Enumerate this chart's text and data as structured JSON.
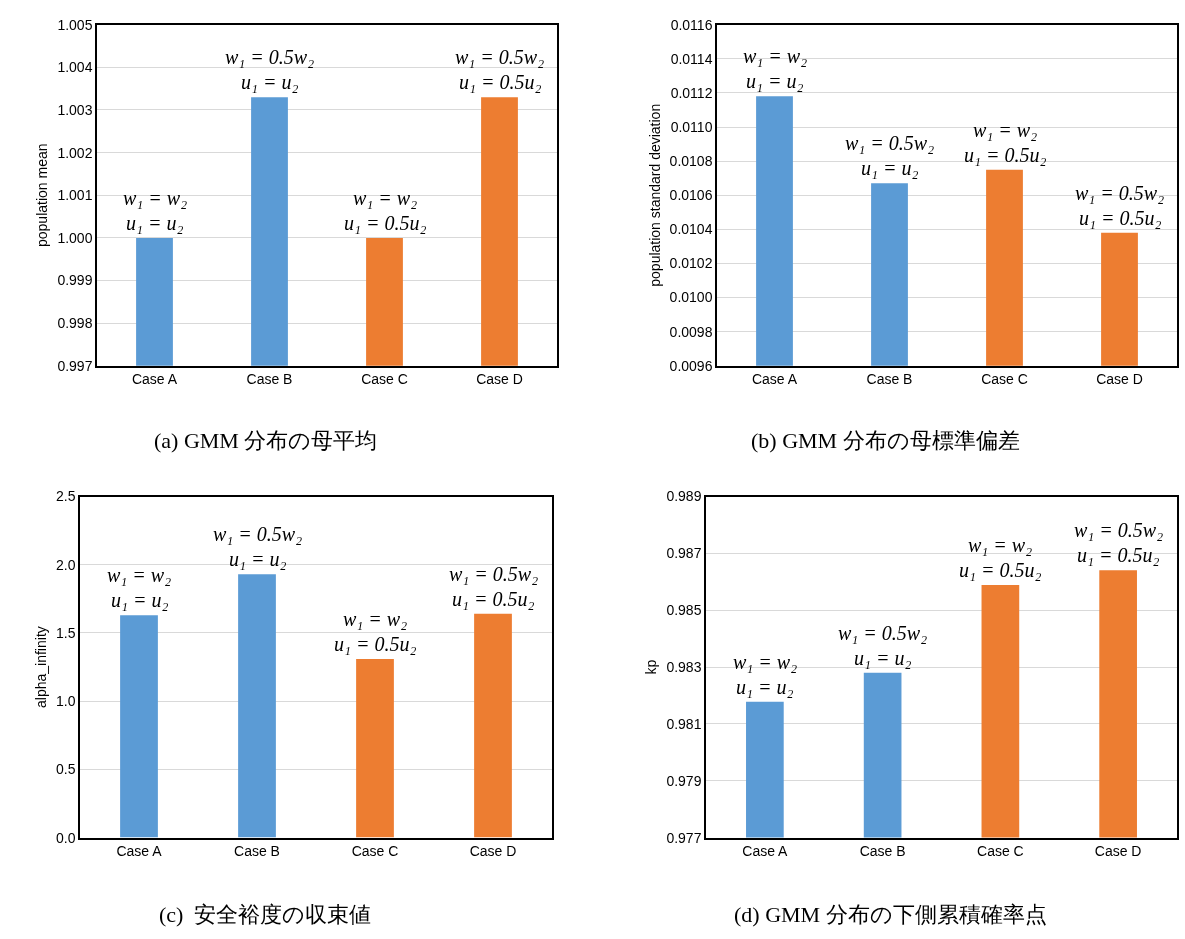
{
  "chart_data": [
    {
      "type": "bar",
      "categories": [
        "Case A",
        "Case B",
        "Case C",
        "Case D"
      ],
      "values": [
        1.0,
        1.0033,
        1.0,
        1.0033
      ],
      "colors": [
        "#5b9bd5",
        "#5b9bd5",
        "#ed7d31",
        "#ed7d31"
      ],
      "ylabel": "population mean",
      "ylim": [
        0.997,
        1.005
      ],
      "yticks": [
        0.997,
        0.998,
        0.999,
        {
          "value": 1.0,
          "label": "1.000"
        },
        1.001,
        1.002,
        1.003,
        1.004,
        1.005
      ],
      "grid": "y",
      "annotations": [
        {
          "text": "w₁ = w₂",
          "x": "Case A",
          "y": 1.0
        },
        {
          "text": "u₁ = u₂",
          "x": "Case A",
          "y": 1.0
        },
        {
          "text": "w₁ = 0.5w₂",
          "x": "Case B",
          "y": 1.0033
        },
        {
          "text": "u₁ = u₂",
          "x": "Case B",
          "y": 1.0033
        },
        {
          "text": "w₁ = w₂",
          "x": "Case C",
          "y": 1.0
        },
        {
          "text": "u₁ = 0.5u₂",
          "x": "Case C",
          "y": 1.0
        },
        {
          "text": "w₁ = 0.5w₂",
          "x": "Case D",
          "y": 1.0033
        },
        {
          "text": "u₁ = 0.5u₂",
          "x": "Case D",
          "y": 1.0033
        },
        "(a) GMM 分布の母平均"
      ]
    },
    {
      "type": "bar",
      "categories": [
        "Case A",
        "Case B",
        "Case C",
        "Case D"
      ],
      "values": [
        0.01118,
        0.01067,
        0.01075,
        0.01038
      ],
      "colors": [
        "#5b9bd5",
        "#5b9bd5",
        "#ed7d31",
        "#ed7d31"
      ],
      "ylabel": "population standard deviation",
      "ylim": [
        0.0096,
        0.0116
      ],
      "yticks": [
        0.0096,
        0.0098,
        {
          "value": 0.01,
          "label": "0.0100"
        },
        0.0102,
        0.0104,
        0.0106,
        0.0108,
        {
          "value": 0.011,
          "label": "0.0110"
        },
        0.0112,
        0.0114,
        0.0116
      ],
      "grid": "y",
      "annotations": [
        {
          "text": "w₁ = w₂",
          "x": "Case A",
          "y": 0.01118
        },
        {
          "text": "u₁ = u₂",
          "x": "Case A",
          "y": 0.01118
        },
        {
          "text": "w₁ = 0.5w₂",
          "x": "Case B",
          "y": 0.01067
        },
        {
          "text": "u₁ = u₂",
          "x": "Case B",
          "y": 0.01067
        },
        {
          "text": "w₁ = w₂",
          "x": "Case C",
          "y": 0.01075
        },
        {
          "text": "u₁ = 0.5u₂",
          "x": "Case C",
          "y": 0.01075
        },
        {
          "text": "w₁ = 0.5w₂",
          "x": "Case D",
          "y": 0.01038
        },
        {
          "text": "u₁ = 0.5u₂",
          "x": "Case D",
          "y": 0.01038
        },
        "(b) GMM 分布の母標準偏差"
      ]
    },
    {
      "type": "bar",
      "categories": [
        "Case A",
        "Case B",
        "Case C",
        "Case D"
      ],
      "values": [
        1.63,
        1.93,
        1.31,
        1.64
      ],
      "colors": [
        "#5b9bd5",
        "#5b9bd5",
        "#ed7d31",
        "#ed7d31"
      ],
      "ylabel": "alpha_infinity",
      "ylim": [
        0,
        2.5
      ],
      "yticks": [
        {
          "value": 0,
          "label": "0.0"
        },
        0.5,
        {
          "value": 1,
          "label": "1.0"
        },
        1.5,
        {
          "value": 2,
          "label": "2.0"
        },
        2.5
      ],
      "grid": "y",
      "annotations": [
        {
          "text": "w₁ = w₂",
          "x": "Case A",
          "y": 1.63
        },
        {
          "text": "u₁ = u₂",
          "x": "Case A",
          "y": 1.63
        },
        {
          "text": "w₁ = 0.5w₂",
          "x": "Case B",
          "y": 1.93
        },
        {
          "text": "u₁ = u₂",
          "x": "Case B",
          "y": 1.93
        },
        {
          "text": "w₁ = w₂",
          "x": "Case C",
          "y": 1.31
        },
        {
          "text": "u₁ = 0.5u₂",
          "x": "Case C",
          "y": 1.31
        },
        {
          "text": "w₁ = 0.5w₂",
          "x": "Case D",
          "y": 1.64
        },
        {
          "text": "u₁ = 0.5u₂",
          "x": "Case D",
          "y": 1.64
        },
        "(c)  安全裕度の収束値"
      ]
    },
    {
      "type": "bar",
      "categories": [
        "Case A",
        "Case B",
        "Case C",
        "Case D"
      ],
      "values": [
        0.98178,
        0.9828,
        0.98589,
        0.98641
      ],
      "colors": [
        "#5b9bd5",
        "#5b9bd5",
        "#ed7d31",
        "#ed7d31"
      ],
      "ylabel": "kp",
      "ylim": [
        0.977,
        0.989
      ],
      "yticks": [
        0.977,
        0.979,
        0.981,
        0.983,
        0.985,
        0.987,
        0.989
      ],
      "grid": "y",
      "annotations": [
        {
          "text": "w₁ = w₂",
          "x": "Case A",
          "y": 0.98178
        },
        {
          "text": "u₁ = u₂",
          "x": "Case A",
          "y": 0.98178
        },
        {
          "text": "w₁ = 0.5w₂",
          "x": "Case B",
          "y": 0.9828
        },
        {
          "text": "u₁ = u₂",
          "x": "Case B",
          "y": 0.9828
        },
        {
          "text": "w₁ = w₂",
          "x": "Case C",
          "y": 0.98589
        },
        {
          "text": "u₁ = 0.5u₂",
          "x": "Case C",
          "y": 0.98589
        },
        {
          "text": "w₁ = 0.5w₂",
          "x": "Case D",
          "y": 0.98641
        },
        {
          "text": "u₁ = 0.5u₂",
          "x": "Case D",
          "y": 0.98641
        },
        "(d) GMM 分布の下側累積確率点"
      ]
    }
  ]
}
